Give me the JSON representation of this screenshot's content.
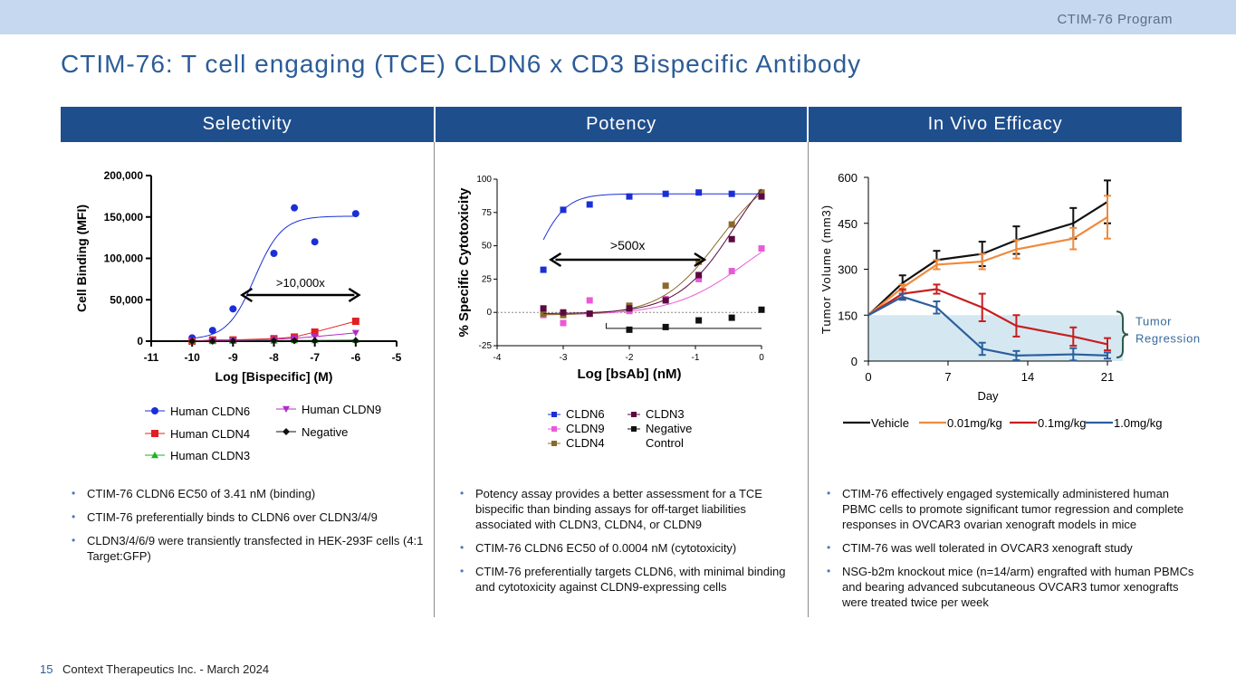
{
  "header": {
    "program": "CTIM-76 Program",
    "title": "CTIM-76: T cell engaging (TCE) CLDN6 x CD3 Bispecific Antibody"
  },
  "columns": [
    "Selectivity",
    "Potency",
    "In Vivo Efficacy"
  ],
  "bullets": {
    "selectivity": [
      "CTIM-76 CLDN6 EC50 of 3.41 nM (binding)",
      "CTIM-76 preferentially binds to CLDN6 over CLDN3/4/9",
      "CLDN3/4/6/9 were transiently transfected in HEK-293F cells (4:1 Target:GFP)"
    ],
    "potency": [
      "Potency assay provides a better assessment for a TCE bispecific than binding assays for off-target liabilities associated with CLDN3, CLDN4, or CLDN9",
      "CTIM-76 CLDN6 EC50 of 0.0004 nM (cytotoxicity)",
      "CTIM-76 preferentially targets CLDN6, with minimal binding and cytotoxicity against CLDN9-expressing cells"
    ],
    "efficacy": [
      "CTIM-76 effectively engaged systemically administered human PBMC cells to promote significant tumor regression and complete responses in OVCAR3 ovarian xenograft models in mice",
      "CTIM-76 was well tolerated in OVCAR3 xenograft study",
      "NSG-b2m knockout mice (n=14/arm) engrafted with human PBMCs and bearing advanced subcutaneous OVCAR3 tumor xenografts were treated twice per week"
    ]
  },
  "footer": {
    "page": "15",
    "text": "Context Therapeutics Inc. - March 2024"
  },
  "chart_data": [
    {
      "type": "scatter",
      "xlabel": "Log [Bispecific] (M)",
      "ylabel": "Cell Binding (MFI)",
      "xlim": [
        -11,
        -5
      ],
      "ylim": [
        0,
        200000
      ],
      "xticks": [
        -11,
        -10,
        -9,
        -8,
        -7,
        -6,
        -5
      ],
      "yticks": [
        0,
        50000,
        100000,
        150000,
        200000
      ],
      "ytick_labels": [
        "0",
        "50,000",
        "100,000",
        "150,000",
        "200,000"
      ],
      "annotation": ">10,000x",
      "series": [
        {
          "name": "Human CLDN6",
          "color": "#1a2fd6",
          "marker": "circle",
          "x": [
            -10,
            -9.5,
            -9,
            -8,
            -7.5,
            -7,
            -6
          ],
          "y": [
            4000,
            13000,
            39000,
            106000,
            161000,
            120000,
            154000
          ],
          "fit": {
            "bottom": 2000,
            "top": 151000,
            "logEC50": -8.47,
            "hill": 1.3
          }
        },
        {
          "name": "Human CLDN4",
          "color": "#e02020",
          "marker": "square",
          "x": [
            -10,
            -9.5,
            -9,
            -8,
            -7.5,
            -7,
            -6
          ],
          "y": [
            0,
            1500,
            1500,
            3000,
            5000,
            11000,
            24000
          ]
        },
        {
          "name": "Human CLDN3",
          "color": "#22b022",
          "marker": "triangle-up",
          "x": [
            -10,
            -9.5,
            -9,
            -8,
            -7.5,
            -7,
            -6
          ],
          "y": [
            0,
            0,
            500,
            500,
            1000,
            1000,
            1500
          ]
        },
        {
          "name": "Human CLDN9",
          "color": "#b02cc8",
          "marker": "triangle-down",
          "x": [
            -10,
            -9.5,
            -9,
            -8,
            -7.5,
            -7,
            -6
          ],
          "y": [
            0,
            500,
            1000,
            2000,
            3500,
            5500,
            10000
          ]
        },
        {
          "name": "Negative",
          "color": "#111111",
          "marker": "diamond",
          "x": [
            -10,
            -9.5,
            -9,
            -8,
            -7.5,
            -7,
            -6
          ],
          "y": [
            0,
            0,
            0,
            500,
            500,
            500,
            500
          ]
        }
      ]
    },
    {
      "type": "scatter",
      "xlabel": "Log [bsAb] (nM)",
      "ylabel": "% Specific Cytotoxicity",
      "xlim": [
        -4,
        0
      ],
      "ylim": [
        -25,
        100
      ],
      "xticks": [
        -4,
        -3,
        -2,
        -1,
        0
      ],
      "yticks": [
        -25,
        0,
        25,
        50,
        75,
        100
      ],
      "annotation": ">500x",
      "series": [
        {
          "name": "CLDN6",
          "color": "#1a2fd6",
          "x": [
            -3.3,
            -3.0,
            -2.6,
            -2.0,
            -1.45,
            -0.95,
            -0.45,
            0
          ],
          "y": [
            32,
            77,
            81,
            87,
            89,
            90,
            89,
            89
          ],
          "fit": {
            "bottom": 0,
            "top": 89,
            "logEC50": -3.4,
            "hill": 2.0
          }
        },
        {
          "name": "CLDN9",
          "color": "#e85ad8",
          "x": [
            -3.3,
            -3.0,
            -2.6,
            -2.0,
            -1.45,
            -0.95,
            -0.45,
            0
          ],
          "y": [
            -2,
            -8,
            9,
            1,
            10,
            25,
            31,
            48
          ],
          "fit": {
            "bottom": -2,
            "top": 75,
            "logEC50": -0.25,
            "hill": 0.8
          }
        },
        {
          "name": "CLDN4",
          "color": "#8a6a2a",
          "x": [
            -3.3,
            -3.0,
            -2.6,
            -2.0,
            -1.45,
            -0.95,
            -0.45,
            0
          ],
          "y": [
            -1,
            -2,
            -1,
            5,
            20,
            38,
            66,
            90
          ],
          "fit": {
            "bottom": -2,
            "top": 110,
            "logEC50": -0.65,
            "hill": 1.0
          }
        },
        {
          "name": "CLDN3",
          "color": "#5a0a40",
          "x": [
            -3.3,
            -3.0,
            -2.6,
            -2.0,
            -1.45,
            -0.95,
            -0.45,
            0
          ],
          "y": [
            3,
            0,
            -1,
            3,
            9,
            28,
            55,
            87
          ],
          "fit": {
            "bottom": -1,
            "top": 130,
            "logEC50": -0.4,
            "hill": 1.0
          }
        },
        {
          "name": "Negative Control",
          "color": "#111111",
          "x": [
            -2.0,
            -1.45,
            -0.95,
            -0.45,
            0
          ],
          "y": [
            -13,
            -11,
            -6,
            -4,
            2
          ]
        }
      ]
    },
    {
      "type": "line",
      "xlabel": "Day",
      "ylabel": "Tumor Volume (mm3)",
      "xlim": [
        0,
        21
      ],
      "ylim": [
        0,
        600
      ],
      "xticks": [
        0,
        7,
        14,
        21
      ],
      "yticks": [
        0,
        150,
        300,
        450,
        600
      ],
      "annotation": "Tumor Regression",
      "regression_band": [
        0,
        150
      ],
      "series": [
        {
          "name": "Vehicle",
          "color": "#111111",
          "x": [
            0,
            3,
            6,
            10,
            13,
            18,
            21
          ],
          "y": [
            150,
            255,
            330,
            350,
            395,
            450,
            520
          ],
          "err": [
            0,
            25,
            30,
            40,
            45,
            50,
            70
          ]
        },
        {
          "name": "0.01mg/kg",
          "color": "#f08a3c",
          "x": [
            0,
            3,
            6,
            10,
            13,
            18,
            21
          ],
          "y": [
            150,
            240,
            315,
            325,
            365,
            400,
            470
          ],
          "err": [
            0,
            10,
            15,
            25,
            30,
            35,
            70
          ]
        },
        {
          "name": "0.1mg/kg",
          "color": "#c81e1e",
          "x": [
            0,
            3,
            6,
            10,
            13,
            18,
            21
          ],
          "y": [
            150,
            220,
            235,
            175,
            115,
            80,
            55
          ],
          "err": [
            0,
            15,
            15,
            45,
            35,
            30,
            20
          ]
        },
        {
          "name": "1.0mg/kg",
          "color": "#2a5f9e",
          "x": [
            0,
            3,
            6,
            10,
            13,
            18,
            21
          ],
          "y": [
            150,
            210,
            175,
            40,
            18,
            22,
            18
          ],
          "err": [
            0,
            10,
            20,
            20,
            15,
            20,
            10
          ]
        }
      ]
    }
  ]
}
